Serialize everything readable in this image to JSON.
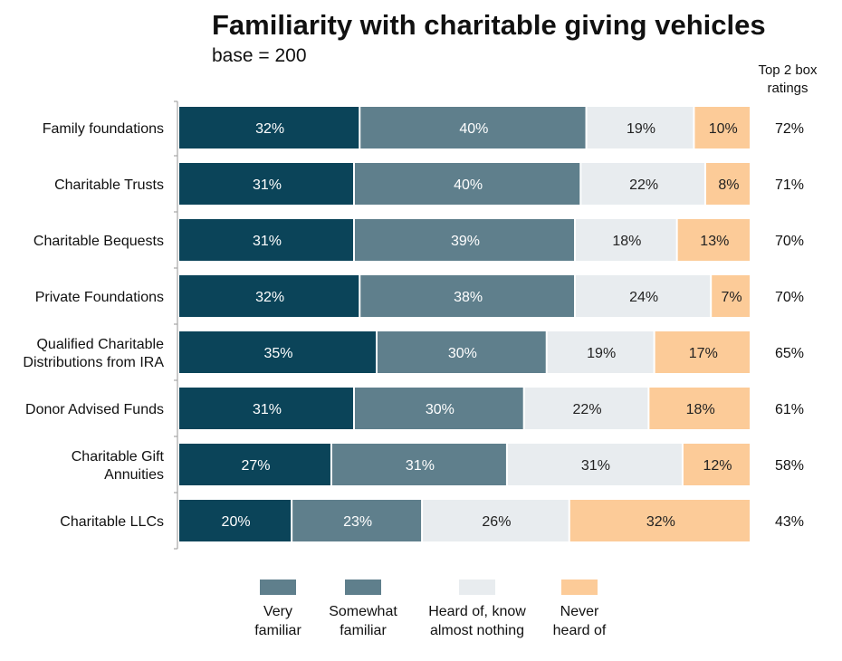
{
  "chart_data": {
    "type": "bar",
    "orientation": "horizontal",
    "stacked": true,
    "title": "Familiarity with charitable giving vehicles",
    "subtitle": "base = 200",
    "value_unit": "%",
    "categories": [
      "Family foundations",
      "Charitable Trusts",
      "Charitable Bequests",
      "Private Foundations",
      "Qualified Charitable Distributions from IRA",
      "Donor Advised Funds",
      "Charitable Gift Annuities",
      "Charitable LLCs"
    ],
    "category_lines": [
      [
        "Family foundations"
      ],
      [
        "Charitable Trusts"
      ],
      [
        "Charitable Bequests"
      ],
      [
        "Private Foundations"
      ],
      [
        "Qualified Charitable",
        "Distributions from IRA"
      ],
      [
        "Donor Advised Funds"
      ],
      [
        "Charitable Gift",
        "Annuities"
      ],
      [
        "Charitable LLCs"
      ]
    ],
    "series": [
      {
        "name": "Very familiar",
        "legend_lines": [
          "Very",
          "familiar"
        ],
        "color": "#0b4459",
        "label_color": "#ffffff",
        "values": [
          32,
          31,
          31,
          32,
          35,
          31,
          27,
          20
        ]
      },
      {
        "name": "Somewhat familiar",
        "legend_lines": [
          "Somewhat",
          "familiar"
        ],
        "color": "#5f7f8c",
        "label_color": "#ffffff",
        "values": [
          40,
          40,
          39,
          38,
          30,
          30,
          31,
          23
        ]
      },
      {
        "name": "Heard of, know almost nothing",
        "legend_lines": [
          "Heard of, know",
          "almost nothing"
        ],
        "color": "#e8ecef",
        "label_color": "#222222",
        "values": [
          19,
          22,
          18,
          24,
          19,
          22,
          31,
          26
        ]
      },
      {
        "name": "Never heard of",
        "legend_lines": [
          "Never",
          "heard of"
        ],
        "color": "#fccb98",
        "label_color": "#222222",
        "values": [
          10,
          8,
          13,
          7,
          17,
          18,
          12,
          32
        ]
      }
    ],
    "legend_swatch_colors": [
      "#5f7f8c",
      "#5f7f8c",
      "#e8ecef",
      "#fccb98"
    ],
    "top2_header_lines": [
      "Top 2 box",
      "ratings"
    ],
    "top2_box": [
      72,
      71,
      70,
      70,
      65,
      61,
      58,
      43
    ],
    "legend_position": "bottom",
    "grid": false
  }
}
